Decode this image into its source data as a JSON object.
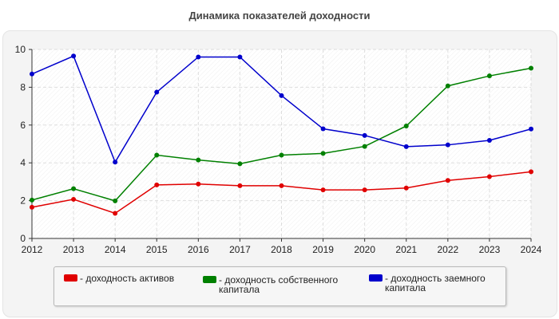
{
  "chart_data": {
    "type": "line",
    "title": "Динамика показателей доходности",
    "xlabel": "",
    "ylabel": "",
    "x": [
      "2012",
      "2013",
      "2014",
      "2015",
      "2016",
      "2017",
      "2018",
      "2019",
      "2020",
      "2021",
      "2022",
      "2023",
      "2024"
    ],
    "ylim": [
      0,
      10
    ],
    "yticks": [
      0,
      2,
      4,
      6,
      8,
      10
    ],
    "grid": true,
    "legend_position": "bottom",
    "series": [
      {
        "name": "- доходность активов",
        "color": "#e00000",
        "values": [
          1.65,
          2.07,
          1.33,
          2.83,
          2.88,
          2.79,
          2.79,
          2.57,
          2.57,
          2.67,
          3.07,
          3.27,
          3.53
        ]
      },
      {
        "name": "- доходность собственного капитала",
        "color": "#008000",
        "values": [
          2.03,
          2.63,
          1.99,
          4.41,
          4.15,
          3.95,
          4.41,
          4.5,
          4.87,
          5.95,
          8.07,
          8.6,
          9.01
        ]
      },
      {
        "name": "- доходность заемного капитала",
        "color": "#0000cc",
        "values": [
          8.7,
          9.65,
          4.04,
          7.74,
          9.6,
          9.6,
          7.56,
          5.8,
          5.45,
          4.86,
          4.95,
          5.19,
          5.79
        ]
      }
    ]
  }
}
